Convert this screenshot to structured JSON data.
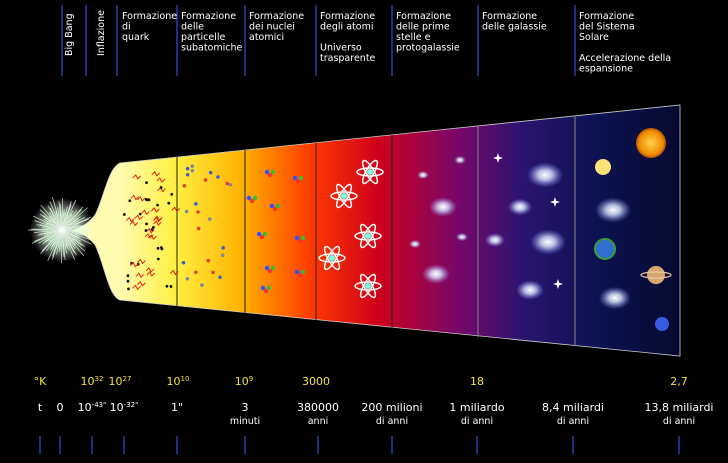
{
  "header": {
    "stages": [
      {
        "lines": [
          "Big Bang"
        ],
        "color": "#ff3b3b",
        "rotated": true
      },
      {
        "lines": [
          "Inflazione"
        ],
        "color": "#ffffff",
        "rotated": true
      },
      {
        "lines": [
          "Formazione",
          "di",
          "quark"
        ]
      },
      {
        "lines": [
          "Formazione",
          "delle",
          "particelle",
          "subatomiche"
        ]
      },
      {
        "lines": [
          "Formazione",
          "dei nuclei",
          "atomici"
        ]
      },
      {
        "lines": [
          "Formazione",
          "degli atomi",
          "",
          "Universo",
          "trasparente"
        ]
      },
      {
        "lines": [
          "Formazione",
          "delle prime",
          "stelle e",
          "protogalassie"
        ]
      },
      {
        "lines": [
          "Formazione",
          "delle galassie"
        ]
      },
      {
        "lines": [
          "Formazione",
          "del Sistema",
          "Solare",
          "",
          "Accelerazione della",
          "espansione"
        ]
      }
    ]
  },
  "temperature": {
    "unit": "°K",
    "values": [
      {
        "base": "10",
        "exp": "32"
      },
      {
        "base": "10",
        "exp": "27"
      },
      {
        "base": "10",
        "exp": "10"
      },
      {
        "base": "10",
        "exp": "9"
      },
      {
        "text": "3000"
      },
      {
        "text": "18"
      },
      {
        "text": "2,7"
      }
    ]
  },
  "time": {
    "unit": "t",
    "values": [
      {
        "lines": [
          "0"
        ]
      },
      {
        "base": "10",
        "exp": "-43\""
      },
      {
        "base": "10",
        "exp": "-32\""
      },
      {
        "lines": [
          "1\""
        ]
      },
      {
        "lines": [
          "3",
          "minuti"
        ]
      },
      {
        "lines": [
          "380000",
          "anni"
        ]
      },
      {
        "lines": [
          "200 milioni",
          "di anni"
        ]
      },
      {
        "lines": [
          "1 miliardo",
          "di anni"
        ]
      },
      {
        "lines": [
          "8,4 miliardi",
          "di anni"
        ]
      },
      {
        "lines": [
          "13,8 miliardi",
          "di anni"
        ]
      }
    ]
  }
}
